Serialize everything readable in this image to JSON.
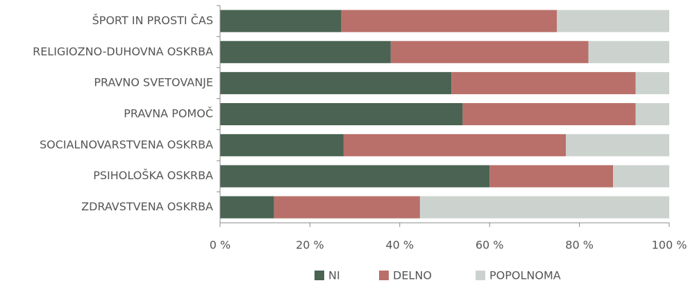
{
  "chart_data": {
    "type": "stacked-barh",
    "categories": [
      "ŠPORT IN PROSTI ČAS",
      "RELIGIOZNO-DUHOVNA OSKRBA",
      "PRAVNO SVETOVANJE",
      "PRAVNA POMOČ",
      "SOCIALNOVARSTVENA OSKRBA",
      "PSIHOLOŠKA OSKRBA",
      "ZDRAVSTVENA OSKRBA"
    ],
    "series": [
      {
        "name": "NI",
        "color": "#4a6352",
        "values": [
          27,
          38,
          51.5,
          54,
          27.5,
          60,
          12
        ]
      },
      {
        "name": "DELNO",
        "color": "#b9706a",
        "values": [
          48,
          44,
          41,
          38.5,
          49.5,
          27.5,
          32.5
        ]
      },
      {
        "name": "POPOLNOMA",
        "color": "#ccd3cf",
        "values": [
          25,
          18,
          7.5,
          7.5,
          23,
          12.5,
          55.5
        ]
      }
    ],
    "xlim": [
      0,
      100
    ],
    "xticks": [
      {
        "value": 0,
        "label": "0 %"
      },
      {
        "value": 20,
        "label": "20 %"
      },
      {
        "value": 40,
        "label": "40 %"
      },
      {
        "value": 60,
        "label": "60 %"
      },
      {
        "value": 80,
        "label": "80 %"
      },
      {
        "value": 100,
        "label": "100 %"
      }
    ],
    "legend": "bottom"
  }
}
